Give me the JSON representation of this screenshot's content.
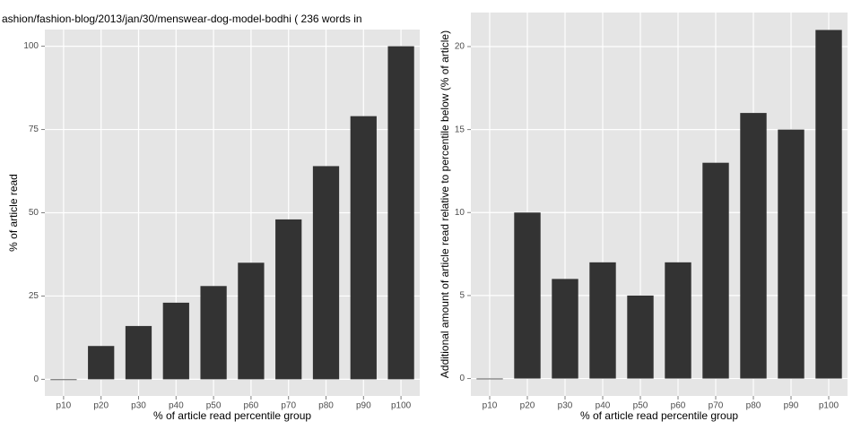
{
  "chart_data": [
    {
      "type": "bar",
      "title": "ashion/fashion-blog/2013/jan/30/menswear-dog-model-bodhi ( 236 words in",
      "x_label": "% of article read percentile group",
      "y_label": "% of article read",
      "categories": [
        "p10",
        "p20",
        "p30",
        "p40",
        "p50",
        "p60",
        "p70",
        "p80",
        "p90",
        "p100"
      ],
      "values": [
        0,
        10,
        16,
        23,
        28,
        35,
        48,
        64,
        79,
        100
      ],
      "color": "#333333",
      "ylim": [
        -5,
        105
      ],
      "yticks": [
        0,
        25,
        50,
        75,
        100
      ],
      "grid": true
    },
    {
      "type": "bar",
      "x_label": "% of article read percentile group",
      "y_label": "Additional amount of article read relative to percentile below (% of article)",
      "categories": [
        "p10",
        "p20",
        "p30",
        "p40",
        "p50",
        "p60",
        "p70",
        "p80",
        "p90",
        "p100"
      ],
      "values": [
        0,
        10,
        6,
        7,
        5,
        7,
        13,
        16,
        15,
        21
      ],
      "color": "#333333",
      "ylim": [
        -1.05,
        22.05
      ],
      "yticks": [
        0,
        5,
        10,
        15,
        20
      ],
      "grid": true
    }
  ]
}
